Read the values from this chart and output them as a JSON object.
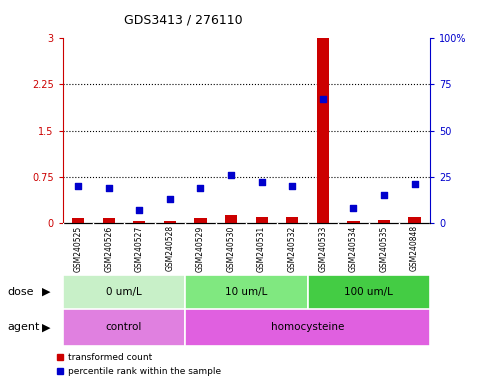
{
  "title": "GDS3413 / 276110",
  "samples": [
    "GSM240525",
    "GSM240526",
    "GSM240527",
    "GSM240528",
    "GSM240529",
    "GSM240530",
    "GSM240531",
    "GSM240532",
    "GSM240533",
    "GSM240534",
    "GSM240535",
    "GSM240848"
  ],
  "transformed_count": [
    0.08,
    0.07,
    0.03,
    0.03,
    0.07,
    0.13,
    0.09,
    0.09,
    3.0,
    0.02,
    0.05,
    0.1
  ],
  "percentile_rank": [
    20,
    19,
    7,
    13,
    19,
    26,
    22,
    20,
    67,
    8,
    15,
    21
  ],
  "ylim_left": [
    0,
    3
  ],
  "ylim_right": [
    0,
    100
  ],
  "yticks_left": [
    0,
    0.75,
    1.5,
    2.25,
    3
  ],
  "yticks_right": [
    0,
    25,
    50,
    75,
    100
  ],
  "ytick_labels_left": [
    "0",
    "0.75",
    "1.5",
    "2.25",
    "3"
  ],
  "ytick_labels_right": [
    "0",
    "25",
    "50",
    "75",
    "100%"
  ],
  "dose_groups": [
    {
      "label": "0 um/L",
      "start": 0,
      "end": 4,
      "color": "#C8F0C8"
    },
    {
      "label": "10 um/L",
      "start": 4,
      "end": 8,
      "color": "#80E880"
    },
    {
      "label": "100 um/L",
      "start": 8,
      "end": 12,
      "color": "#44CC44"
    }
  ],
  "agent_groups": [
    {
      "label": "control",
      "start": 0,
      "end": 4,
      "color": "#E080E0"
    },
    {
      "label": "homocysteine",
      "start": 4,
      "end": 12,
      "color": "#E060E0"
    }
  ],
  "bar_color": "#CC0000",
  "dot_color": "#0000CC",
  "bg_color": "#FFFFFF",
  "tick_label_area_color": "#C8C8C8",
  "left_axis_color": "#CC0000",
  "right_axis_color": "#0000CC",
  "legend_items": [
    {
      "label": "transformed count",
      "color": "#CC0000"
    },
    {
      "label": "percentile rank within the sample",
      "color": "#0000CC"
    }
  ],
  "figwidth": 4.83,
  "figheight": 3.84,
  "dpi": 100
}
